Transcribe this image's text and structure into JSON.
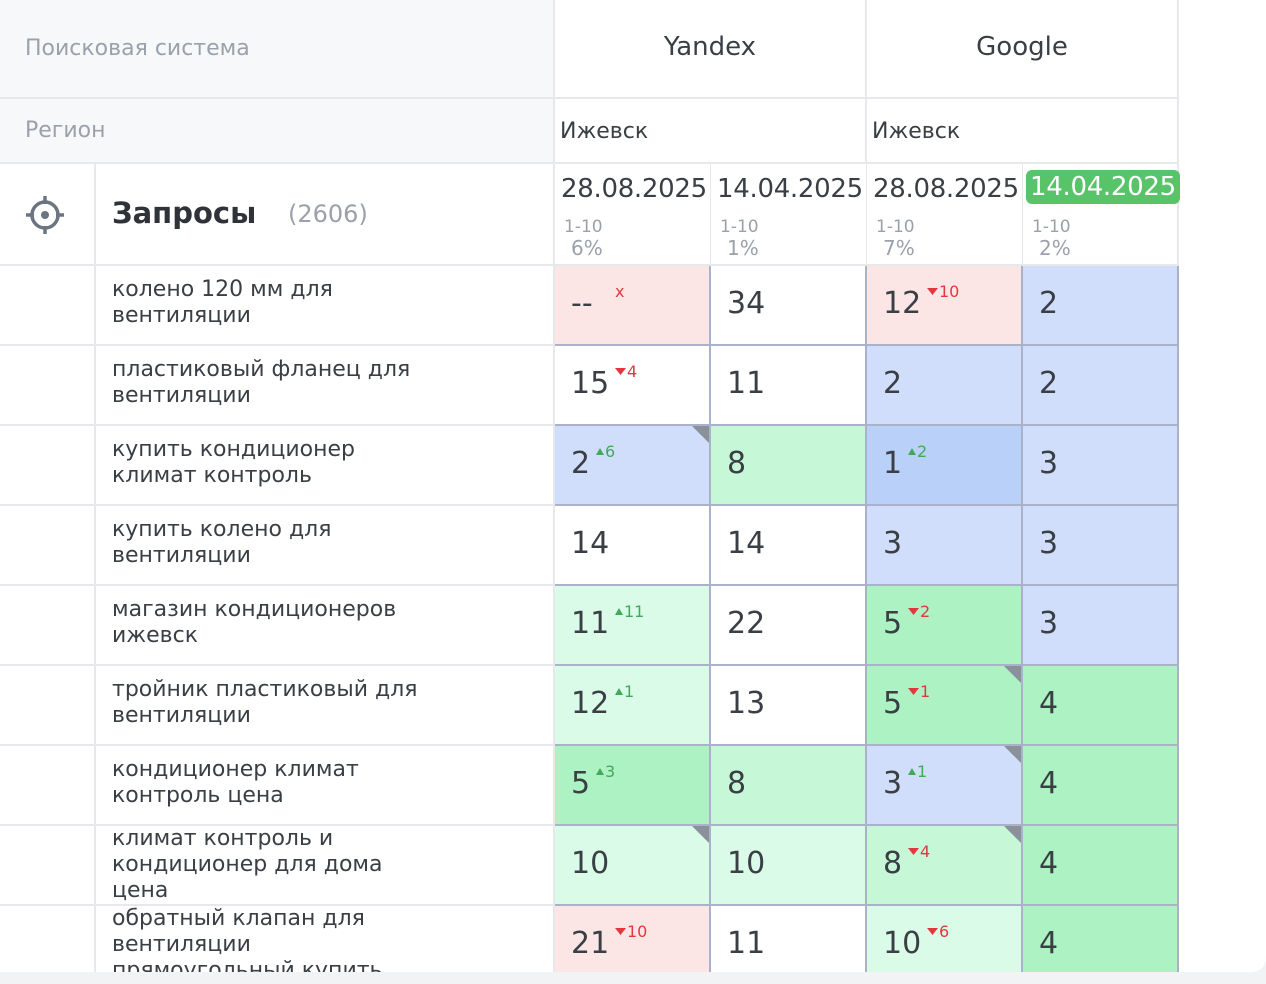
{
  "header": {
    "engine_label": "Поисковая система",
    "engines": [
      "Yandex",
      "Google"
    ],
    "region_label": "Регион",
    "regions": [
      "Ижевск",
      "Ижевск"
    ],
    "queries_label": "Запросы",
    "queries_count": "(2606)",
    "target_icon": "crosshair-icon"
  },
  "columns": [
    {
      "date": "28.08.2025",
      "range": "1-10",
      "pct": "6%",
      "active": false
    },
    {
      "date": "14.04.2025",
      "range": "1-10",
      "pct": "1%",
      "active": false
    },
    {
      "date": "28.08.2025",
      "range": "1-10",
      "pct": "7%",
      "active": false
    },
    {
      "date": "14.04.2025",
      "range": "1-10",
      "pct": "2%",
      "active": true
    }
  ],
  "colors": {
    "pink": "#fbe5e5",
    "white": "#ffffff",
    "blue": "#d1defb",
    "blue_dark": "#b9d0f9",
    "green_lightest": "#dafbe7",
    "green_light": "#c6f7d7",
    "green": "#acf2c2",
    "active_date": "#59c36a"
  },
  "rows": [
    {
      "query": [
        "колено 120 мм для",
        "вентиляции"
      ],
      "cells": [
        {
          "pos": "--",
          "delta": "x",
          "dir": "down",
          "bg": "pink"
        },
        {
          "pos": "34",
          "delta": "",
          "dir": "",
          "bg": "white"
        },
        {
          "pos": "12",
          "delta": "10",
          "dir": "down",
          "bg": "pink"
        },
        {
          "pos": "2",
          "delta": "",
          "dir": "",
          "bg": "blue"
        }
      ]
    },
    {
      "query": [
        "пластиковый фланец для",
        "вентиляции"
      ],
      "cells": [
        {
          "pos": "15",
          "delta": "4",
          "dir": "down",
          "bg": "white"
        },
        {
          "pos": "11",
          "delta": "",
          "dir": "",
          "bg": "white"
        },
        {
          "pos": "2",
          "delta": "",
          "dir": "",
          "bg": "blue"
        },
        {
          "pos": "2",
          "delta": "",
          "dir": "",
          "bg": "blue"
        }
      ]
    },
    {
      "query": [
        "купить кондиционер",
        "климат контроль"
      ],
      "cells": [
        {
          "pos": "2",
          "delta": "6",
          "dir": "up",
          "bg": "blue",
          "corner": true
        },
        {
          "pos": "8",
          "delta": "",
          "dir": "",
          "bg": "green_light"
        },
        {
          "pos": "1",
          "delta": "2",
          "dir": "up",
          "bg": "blue_dark"
        },
        {
          "pos": "3",
          "delta": "",
          "dir": "",
          "bg": "blue"
        }
      ]
    },
    {
      "query": [
        "купить колено для",
        "вентиляции"
      ],
      "cells": [
        {
          "pos": "14",
          "delta": "",
          "dir": "",
          "bg": "white"
        },
        {
          "pos": "14",
          "delta": "",
          "dir": "",
          "bg": "white"
        },
        {
          "pos": "3",
          "delta": "",
          "dir": "",
          "bg": "blue"
        },
        {
          "pos": "3",
          "delta": "",
          "dir": "",
          "bg": "blue"
        }
      ]
    },
    {
      "query": [
        "магазин кондиционеров",
        "ижевск"
      ],
      "cells": [
        {
          "pos": "11",
          "delta": "11",
          "dir": "up",
          "bg": "green_lightest"
        },
        {
          "pos": "22",
          "delta": "",
          "dir": "",
          "bg": "white"
        },
        {
          "pos": "5",
          "delta": "2",
          "dir": "down",
          "bg": "green"
        },
        {
          "pos": "3",
          "delta": "",
          "dir": "",
          "bg": "blue"
        }
      ]
    },
    {
      "query": [
        "тройник пластиковый для",
        "вентиляции"
      ],
      "cells": [
        {
          "pos": "12",
          "delta": "1",
          "dir": "up",
          "bg": "green_lightest"
        },
        {
          "pos": "13",
          "delta": "",
          "dir": "",
          "bg": "white"
        },
        {
          "pos": "5",
          "delta": "1",
          "dir": "down",
          "bg": "green",
          "corner": true
        },
        {
          "pos": "4",
          "delta": "",
          "dir": "",
          "bg": "green"
        }
      ]
    },
    {
      "query": [
        "кондиционер климат",
        "контроль цена"
      ],
      "cells": [
        {
          "pos": "5",
          "delta": "3",
          "dir": "up",
          "bg": "green"
        },
        {
          "pos": "8",
          "delta": "",
          "dir": "",
          "bg": "green_light"
        },
        {
          "pos": "3",
          "delta": "1",
          "dir": "up",
          "bg": "blue",
          "corner": true
        },
        {
          "pos": "4",
          "delta": "",
          "dir": "",
          "bg": "green"
        }
      ]
    },
    {
      "query": [
        "климат контроль и",
        "кондиционер для дома",
        "цена"
      ],
      "cells": [
        {
          "pos": "10",
          "delta": "",
          "dir": "",
          "bg": "green_lightest",
          "corner": true
        },
        {
          "pos": "10",
          "delta": "",
          "dir": "",
          "bg": "green_lightest"
        },
        {
          "pos": "8",
          "delta": "4",
          "dir": "down",
          "bg": "green_light",
          "corner": true
        },
        {
          "pos": "4",
          "delta": "",
          "dir": "",
          "bg": "green"
        }
      ]
    },
    {
      "query": [
        "обратный клапан для",
        "вентиляции",
        "прямоугольный купить"
      ],
      "cells": [
        {
          "pos": "21",
          "delta": "10",
          "dir": "down",
          "bg": "pink"
        },
        {
          "pos": "11",
          "delta": "",
          "dir": "",
          "bg": "white"
        },
        {
          "pos": "10",
          "delta": "6",
          "dir": "down",
          "bg": "green_lightest"
        },
        {
          "pos": "4",
          "delta": "",
          "dir": "",
          "bg": "green"
        }
      ]
    }
  ]
}
